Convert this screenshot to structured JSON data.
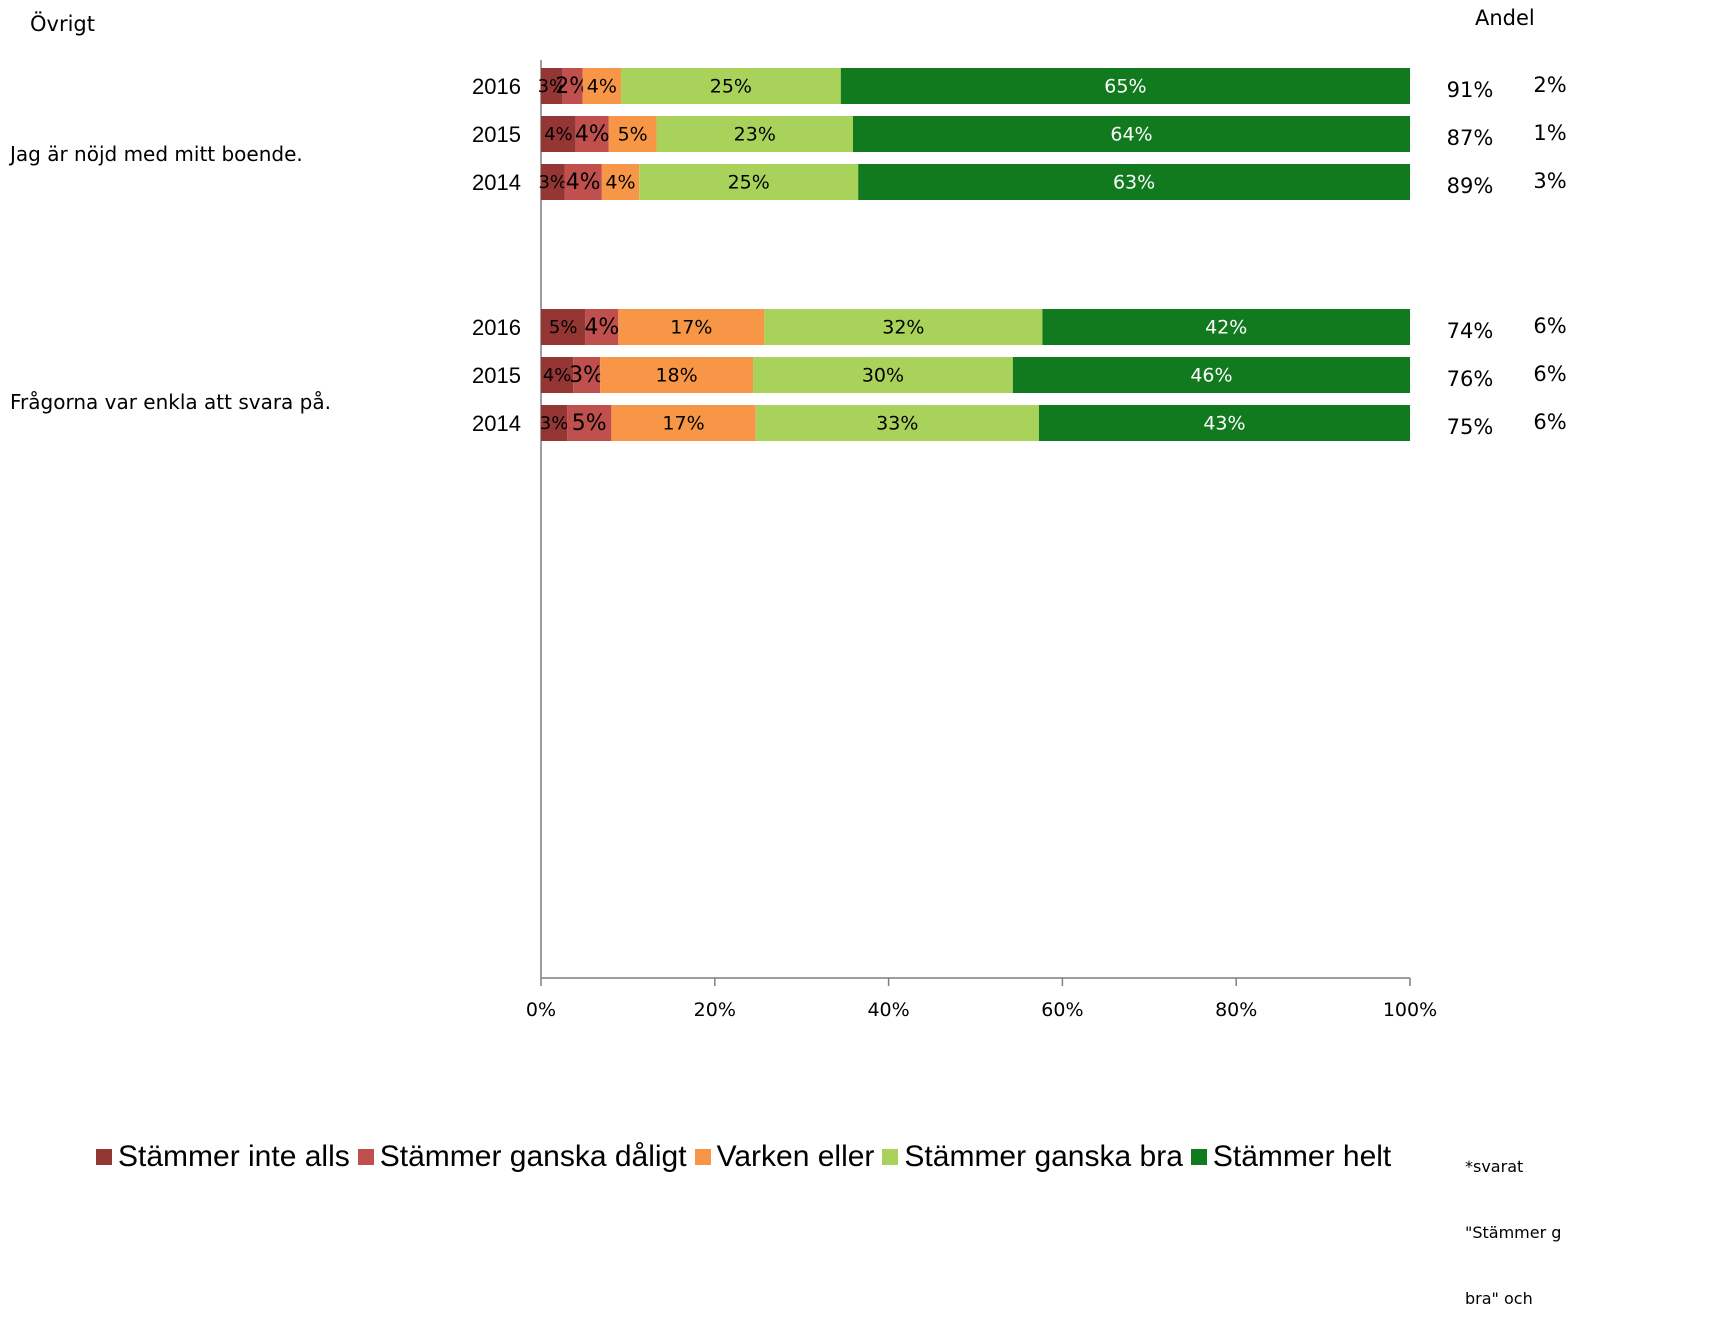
{
  "header": {
    "section": "Övrigt",
    "andel_label": "Andel"
  },
  "footnote": {
    "line1": "*svarat",
    "line2": "\"Stämmer g",
    "line3": "bra\" och"
  },
  "chart_data": {
    "type": "bar",
    "orientation": "horizontal",
    "stacked": true,
    "percent_axis": true,
    "xlim": [
      0,
      100
    ],
    "xticks": [
      "0%",
      "20%",
      "40%",
      "60%",
      "80%",
      "100%"
    ],
    "colors": [
      "#943634",
      "#c0504d",
      "#f79646",
      "#a9d25b",
      "#127a1e"
    ],
    "series_names": [
      "Stämmer inte alls",
      "Stämmer ganska dåligt",
      "Varken eller",
      "Stämmer ganska bra",
      "Stämmer helt"
    ],
    "groups": [
      {
        "question": "Jag är nöjd med mitt boende.",
        "rows": [
          {
            "year": "2016",
            "values": [
              2.5,
              2.3,
              4.4,
              25.3,
              65.5
            ],
            "labels": [
              "3%",
              "2%",
              "4%",
              "25%",
              "65%"
            ],
            "andel": "91%",
            "ovrigt": "2%"
          },
          {
            "year": "2015",
            "values": [
              4.0,
              3.8,
              5.5,
              22.6,
              64.1
            ],
            "labels": [
              "4%",
              "4%",
              "5%",
              "23%",
              "64%"
            ],
            "andel": "87%",
            "ovrigt": "1%"
          },
          {
            "year": "2014",
            "values": [
              2.7,
              4.3,
              4.3,
              25.2,
              63.5
            ],
            "labels": [
              "3%",
              "4%",
              "4%",
              "25%",
              "63%"
            ],
            "andel": "89%",
            "ovrigt": "3%"
          }
        ]
      },
      {
        "question": "Frågorna var enkla att svara på.",
        "rows": [
          {
            "year": "2016",
            "values": [
              5.1,
              3.8,
              16.8,
              32.0,
              42.3
            ],
            "labels": [
              "5%",
              "4%",
              "17%",
              "32%",
              "42%"
            ],
            "andel": "74%",
            "ovrigt": "6%"
          },
          {
            "year": "2015",
            "values": [
              3.7,
              3.1,
              17.6,
              29.9,
              45.7
            ],
            "labels": [
              "4%",
              "3%",
              "18%",
              "30%",
              "46%"
            ],
            "andel": "76%",
            "ovrigt": "6%"
          },
          {
            "year": "2014",
            "values": [
              3.0,
              5.1,
              16.6,
              32.6,
              42.7
            ],
            "labels": [
              "3%",
              "5%",
              "17%",
              "33%",
              "43%"
            ],
            "andel": "75%",
            "ovrigt": "6%"
          }
        ]
      }
    ]
  }
}
